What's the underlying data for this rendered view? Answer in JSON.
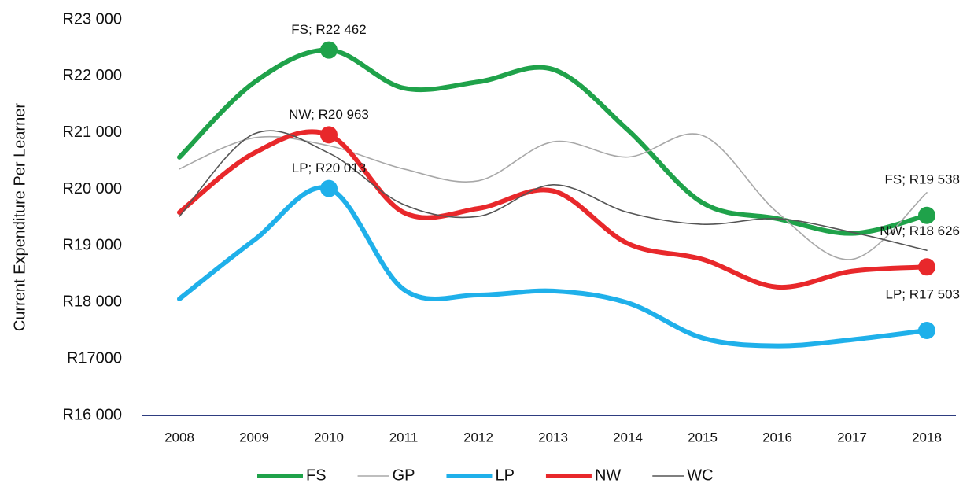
{
  "chart_data": {
    "type": "line",
    "y_label": "Current Expenditure Per Learner",
    "categories": [
      "2008",
      "2009",
      "2010",
      "2011",
      "2012",
      "2013",
      "2014",
      "2015",
      "2016",
      "2017",
      "2018"
    ],
    "series": [
      {
        "name": "FS",
        "color": "#1fa24a",
        "width": 6,
        "values": [
          20566,
          21890,
          22462,
          21790,
          21900,
          22120,
          21050,
          19760,
          19480,
          19220,
          19538
        ],
        "value_labels": [
          null,
          null,
          "FS; R22 462",
          null,
          null,
          null,
          null,
          null,
          null,
          null,
          "FS; R19 538"
        ]
      },
      {
        "name": "GP",
        "color": "#a8a8a8",
        "width": 1.6,
        "values": [
          20360,
          20910,
          20770,
          20360,
          20150,
          20840,
          20570,
          20950,
          19590,
          18760,
          19940
        ]
      },
      {
        "name": "LP",
        "color": "#1fb0ea",
        "width": 6,
        "values": [
          18060,
          19100,
          20013,
          18230,
          18130,
          18200,
          17990,
          17370,
          17230,
          17340,
          17503
        ],
        "value_labels": [
          null,
          null,
          "LP; R20 013",
          null,
          null,
          null,
          null,
          null,
          null,
          null,
          "LP; R17 503"
        ]
      },
      {
        "name": "NW",
        "color": "#e8282b",
        "width": 6,
        "values": [
          19590,
          20640,
          20963,
          19590,
          19660,
          19970,
          19040,
          18760,
          18270,
          18550,
          18626
        ],
        "value_labels": [
          null,
          null,
          "NW; R20 963",
          null,
          null,
          null,
          null,
          null,
          null,
          null,
          "NW; R18 626"
        ]
      },
      {
        "name": "WC",
        "color": "#555555",
        "width": 1.6,
        "values": [
          19520,
          20980,
          20640,
          19730,
          19520,
          20080,
          19590,
          19380,
          19480,
          19240,
          18920
        ]
      }
    ],
    "ylim": [
      16000,
      23000
    ],
    "yticks": [
      {
        "value": 16000,
        "label": "R16 000"
      },
      {
        "value": 17000,
        "label": "R17000"
      },
      {
        "value": 18000,
        "label": "R18 000"
      },
      {
        "value": 19000,
        "label": "R19 000"
      },
      {
        "value": 20000,
        "label": "R20 000"
      },
      {
        "value": 21000,
        "label": "R21 000"
      },
      {
        "value": 22000,
        "label": "R22 000"
      },
      {
        "value": 23000,
        "label": "R23 000"
      }
    ],
    "grid": false,
    "legend": "bottom"
  }
}
